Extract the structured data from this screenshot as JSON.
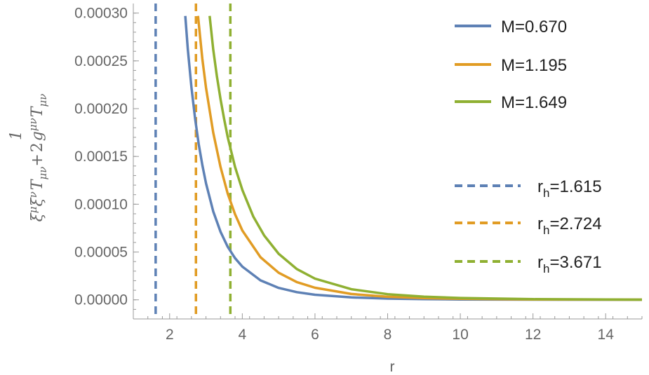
{
  "chart_data": {
    "type": "line",
    "xlabel": "r",
    "ylabel": {
      "main": "ξ",
      "mu": "μ",
      "nu": "ν",
      "T": "T",
      "munu": "μν",
      "plus": "+",
      "frac_num": "1",
      "frac_den": "2",
      "g": "g"
    },
    "xlim": [
      1.0,
      15.0
    ],
    "ylim": [
      -2e-05,
      0.00031
    ],
    "xticks": [
      "2",
      "4",
      "6",
      "8",
      "10",
      "12",
      "14"
    ],
    "xtick_values": [
      2,
      4,
      6,
      8,
      10,
      12,
      14
    ],
    "yticks": [
      "0.00000",
      "0.00005",
      "0.00010",
      "0.00015",
      "0.00020",
      "0.00025",
      "0.00030"
    ],
    "ytick_values": [
      0.0,
      5e-05,
      0.0001,
      0.00015,
      0.0002,
      0.00025,
      0.0003
    ],
    "grid": false,
    "legend_position": "right",
    "series": [
      {
        "name": "M=0.670",
        "color": "#5e81b5",
        "style": "solid",
        "x": [
          2.43,
          2.5,
          2.6,
          2.7,
          2.8,
          2.9,
          3.0,
          3.2,
          3.4,
          3.6,
          3.8,
          4.0,
          4.5,
          5.0,
          5.5,
          6.0,
          7.0,
          8.0,
          9.0,
          10.0,
          12.0,
          15.0
        ],
        "y": [
          0.000297,
          0.000262,
          0.000222,
          0.00019,
          0.000163,
          0.000141,
          0.000122,
          9.25e-05,
          7.12e-05,
          5.54e-05,
          4.36e-05,
          3.47e-05,
          2.03e-05,
          1.25e-05,
          8e-06,
          5.3e-06,
          2.5e-06,
          1.3e-06,
          7e-07,
          4e-07,
          2e-07,
          1e-07
        ]
      },
      {
        "name": "M=1.195",
        "color": "#e19c24",
        "style": "solid",
        "x": [
          2.78,
          2.9,
          3.0,
          3.2,
          3.4,
          3.6,
          3.8,
          4.0,
          4.5,
          5.0,
          5.5,
          6.0,
          7.0,
          8.0,
          9.0,
          10.0,
          12.0,
          15.0
        ],
        "y": [
          0.000297,
          0.000252,
          0.000222,
          0.000175,
          0.000139,
          0.000111,
          8.95e-05,
          7.25e-05,
          4.45e-05,
          2.83e-05,
          1.86e-05,
          1.26e-05,
          6.1e-06,
          3.2e-06,
          1.8e-06,
          1.1e-06,
          4e-07,
          2e-07
        ]
      },
      {
        "name": "M=1.649",
        "color": "#8fb032",
        "style": "solid",
        "x": [
          3.1,
          3.2,
          3.3,
          3.4,
          3.5,
          3.6,
          3.8,
          4.0,
          4.3,
          4.6,
          5.0,
          5.5,
          6.0,
          7.0,
          8.0,
          9.0,
          10.0,
          12.0,
          15.0
        ],
        "y": [
          0.000297,
          0.000262,
          0.000234,
          0.00021,
          0.000189,
          0.00017,
          0.000139,
          0.000115,
          8.73e-05,
          6.74e-05,
          4.82e-05,
          3.22e-05,
          2.22e-05,
          1.11e-05,
          5.9e-06,
          3.3e-06,
          1.9e-06,
          7e-07,
          2e-07
        ]
      }
    ],
    "vlines": [
      {
        "name_prefix": "r",
        "name_sub": "h",
        "name_value": "=1.615",
        "x": 1.615,
        "color": "#5e81b5",
        "style": "dashed"
      },
      {
        "name_prefix": "r",
        "name_sub": "h",
        "name_value": "=2.724",
        "x": 2.724,
        "color": "#e19c24",
        "style": "dashed"
      },
      {
        "name_prefix": "r",
        "name_sub": "h",
        "name_value": "=3.671",
        "x": 3.671,
        "color": "#8fb032",
        "style": "dashed"
      }
    ]
  }
}
